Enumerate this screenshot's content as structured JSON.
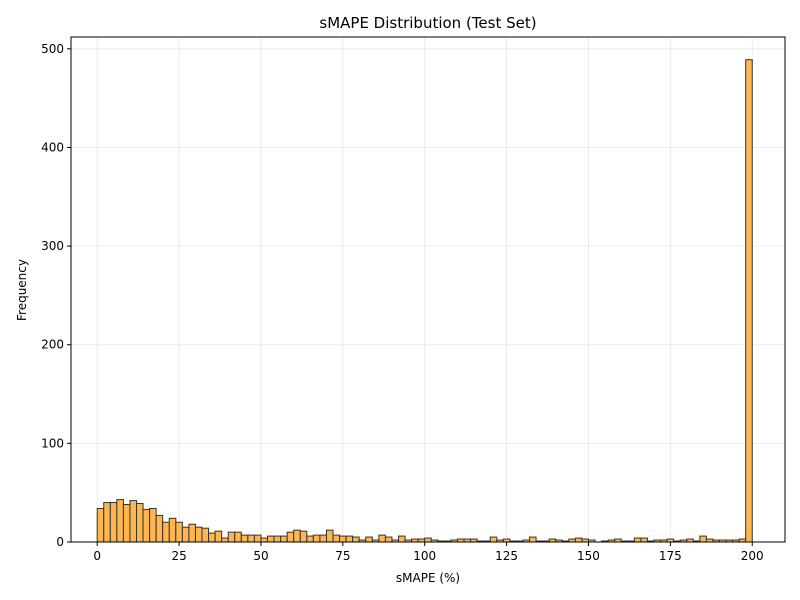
{
  "chart_data": {
    "type": "bar",
    "title": "sMAPE Distribution (Test Set)",
    "xlabel": "sMAPE (%)",
    "ylabel": "Frequency",
    "xlim": [
      -8,
      210
    ],
    "ylim": [
      0,
      512
    ],
    "xticks": [
      0,
      25,
      50,
      75,
      100,
      125,
      150,
      175,
      200
    ],
    "yticks": [
      0,
      100,
      200,
      300,
      400,
      500
    ],
    "grid": true,
    "bar_color": "#FFB74D",
    "edge_color": "#333333",
    "bin_width": 2,
    "bin_start": 0,
    "values": [
      34,
      40,
      40,
      43,
      38,
      42,
      39,
      33,
      34,
      27,
      20,
      24,
      20,
      15,
      18,
      15,
      14,
      9,
      11,
      4,
      10,
      10,
      7,
      7,
      7,
      4,
      6,
      6,
      6,
      10,
      12,
      11,
      6,
      7,
      7,
      12,
      7,
      6,
      6,
      5,
      2,
      5,
      2,
      7,
      5,
      2,
      6,
      2,
      3,
      3,
      4,
      2,
      1,
      1,
      2,
      3,
      3,
      3,
      1,
      1,
      5,
      2,
      3,
      1,
      1,
      2,
      5,
      1,
      1,
      3,
      2,
      1,
      3,
      4,
      3,
      2,
      0,
      1,
      2,
      3,
      1,
      1,
      4,
      4,
      1,
      2,
      2,
      3,
      1,
      2,
      3,
      1,
      6,
      3,
      2,
      2,
      2,
      2,
      3,
      489
    ]
  }
}
